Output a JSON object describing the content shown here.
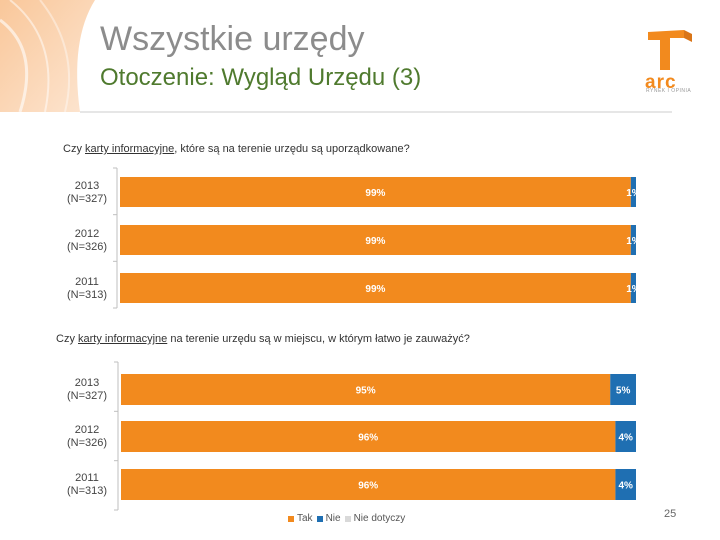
{
  "header": {
    "title": "Wszystkie urzędy",
    "subtitle": "Otoczenie: Wygląd Urzędu (3)"
  },
  "logo": {
    "text": "arc",
    "tagline": "RYNEK I OPINIA"
  },
  "colors": {
    "tak": "#f28a1e",
    "nie": "#1f6fb2",
    "nie_dotyczy": "#d9d9d9",
    "title": "#8c8c8c",
    "subtitle": "#4f7a2e"
  },
  "chart_data": [
    {
      "type": "bar",
      "orientation": "horizontal",
      "stacked": true,
      "question_pre": "Czy ",
      "question_ul": "karty informacyjne",
      "question_post": ", które są na terenie urzędu są uporządkowane?",
      "categories": [
        [
          "2013",
          "(N=327)"
        ],
        [
          "2012",
          "(N=326)"
        ],
        [
          "2011",
          "(N=313)"
        ]
      ],
      "series": [
        {
          "name": "Tak",
          "values": [
            99,
            99,
            99
          ],
          "labels": [
            "99%",
            "99%",
            "99%"
          ]
        },
        {
          "name": "Nie",
          "values": [
            1,
            1,
            1
          ],
          "labels": [
            "1%",
            "1%",
            "1%"
          ]
        },
        {
          "name": "Nie dotyczy",
          "values": [
            0,
            0,
            0
          ],
          "labels": [
            "",
            "",
            ""
          ]
        }
      ],
      "xlim": [
        0,
        100
      ]
    },
    {
      "type": "bar",
      "orientation": "horizontal",
      "stacked": true,
      "question_pre": "Czy ",
      "question_ul": "karty informacyjne",
      "question_post": " na terenie urzędu są w miejscu, w którym łatwo je zauważyć?",
      "categories": [
        [
          "2013",
          "(N=327)"
        ],
        [
          "2012",
          "(N=326)"
        ],
        [
          "2011",
          "(N=313)"
        ]
      ],
      "series": [
        {
          "name": "Tak",
          "values": [
            95,
            96,
            96
          ],
          "labels": [
            "95%",
            "96%",
            "96%"
          ]
        },
        {
          "name": "Nie",
          "values": [
            5,
            4,
            4
          ],
          "labels": [
            "5%",
            "4%",
            "4%"
          ]
        },
        {
          "name": "Nie dotyczy",
          "values": [
            0,
            0,
            0
          ],
          "labels": [
            "",
            "",
            ""
          ]
        }
      ],
      "xlim": [
        0,
        100
      ]
    }
  ],
  "legend": [
    "Tak",
    "Nie",
    "Nie dotyczy"
  ],
  "page_number": "25"
}
